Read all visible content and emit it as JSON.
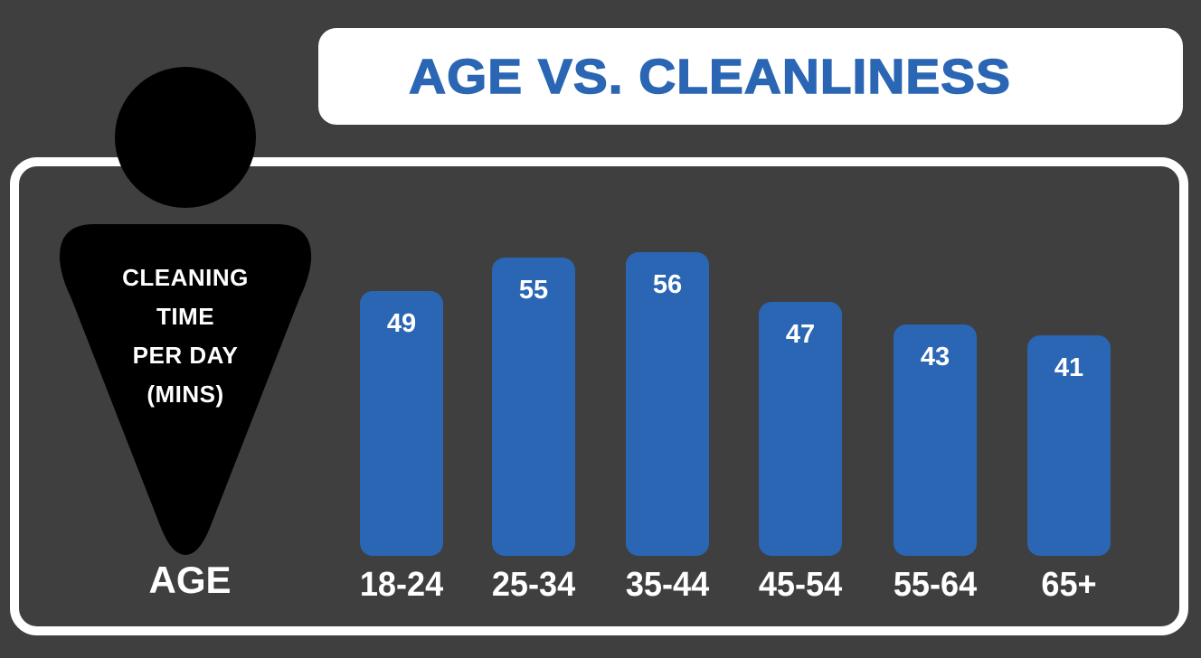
{
  "title": "AGE VS. CLEANLINESS",
  "y_axis_label_lines": [
    "CLEANING",
    "TIME",
    "PER DAY",
    "(MINS)"
  ],
  "x_axis_label": "AGE",
  "colors": {
    "background": "#3f3f3f",
    "bar": "#2a66b3",
    "title_text": "#2a66b3",
    "panel": "#ffffff",
    "figure": "#000000"
  },
  "chart_data": {
    "type": "bar",
    "title": "AGE VS. CLEANLINESS",
    "xlabel": "AGE",
    "ylabel": "CLEANING TIME PER DAY (MINS)",
    "categories": [
      "18-24",
      "25-34",
      "35-44",
      "45-54",
      "55-64",
      "65+"
    ],
    "values": [
      49,
      55,
      56,
      47,
      43,
      41
    ],
    "data_labels": true,
    "grid": false,
    "legend": null
  }
}
